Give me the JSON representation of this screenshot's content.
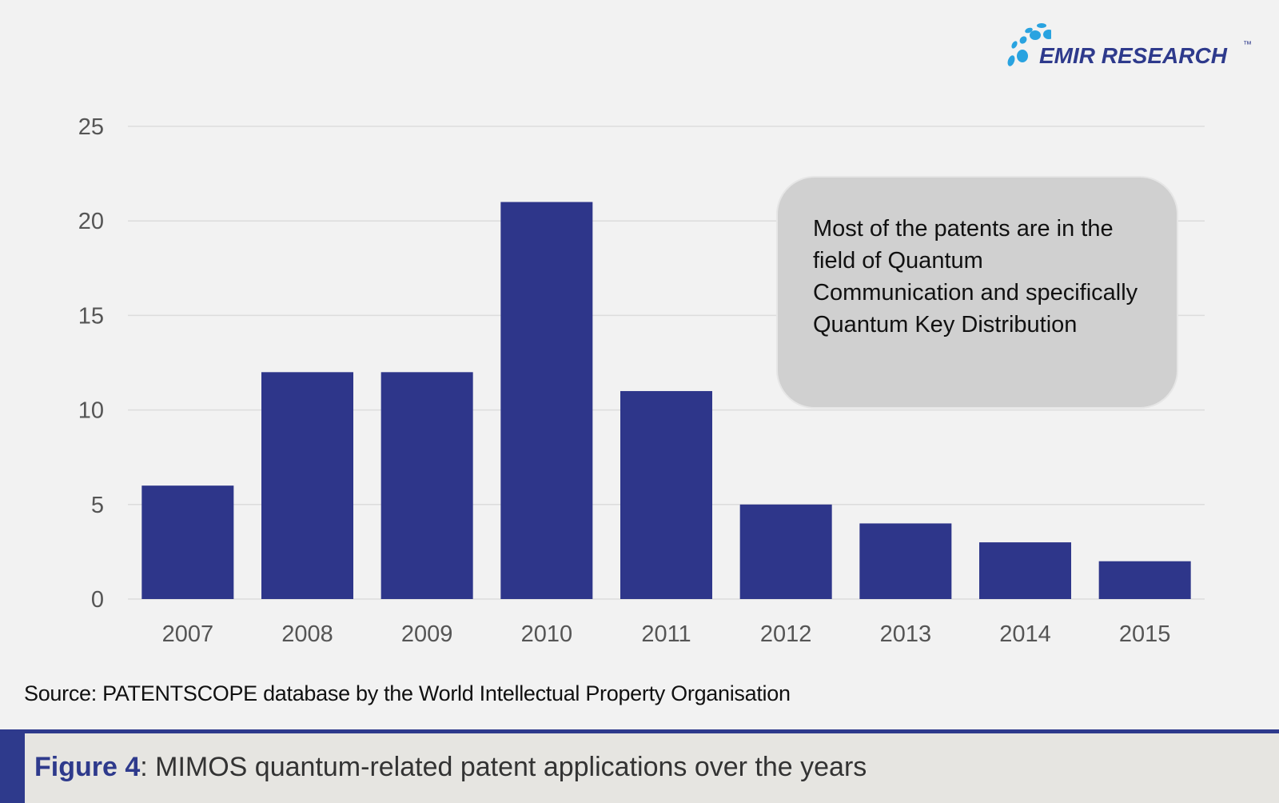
{
  "logo": {
    "text": "EMIR RESEARCH",
    "tm": "™"
  },
  "annotation": "Most of the patents are in the field of Quantum Communication and specifically Quantum Key Distribution",
  "source": "Source: PATENTSCOPE database by the World Intellectual Property Organisation",
  "caption": {
    "label": "Figure 4",
    "separator": ":",
    "text": " MIMOS quantum-related patent applications over the years"
  },
  "colors": {
    "bar": "#2e368a",
    "accent": "#2e3a8c",
    "logo_dots": "#29a3e0"
  },
  "chart_data": {
    "type": "bar",
    "categories": [
      "2007",
      "2008",
      "2009",
      "2010",
      "2011",
      "2012",
      "2013",
      "2014",
      "2015"
    ],
    "values": [
      6,
      12,
      12,
      21,
      11,
      5,
      4,
      3,
      2
    ],
    "ylim": [
      0,
      25
    ],
    "yticks": [
      0,
      5,
      10,
      15,
      20,
      25
    ],
    "grid": true,
    "xlabel": "",
    "ylabel": ""
  }
}
